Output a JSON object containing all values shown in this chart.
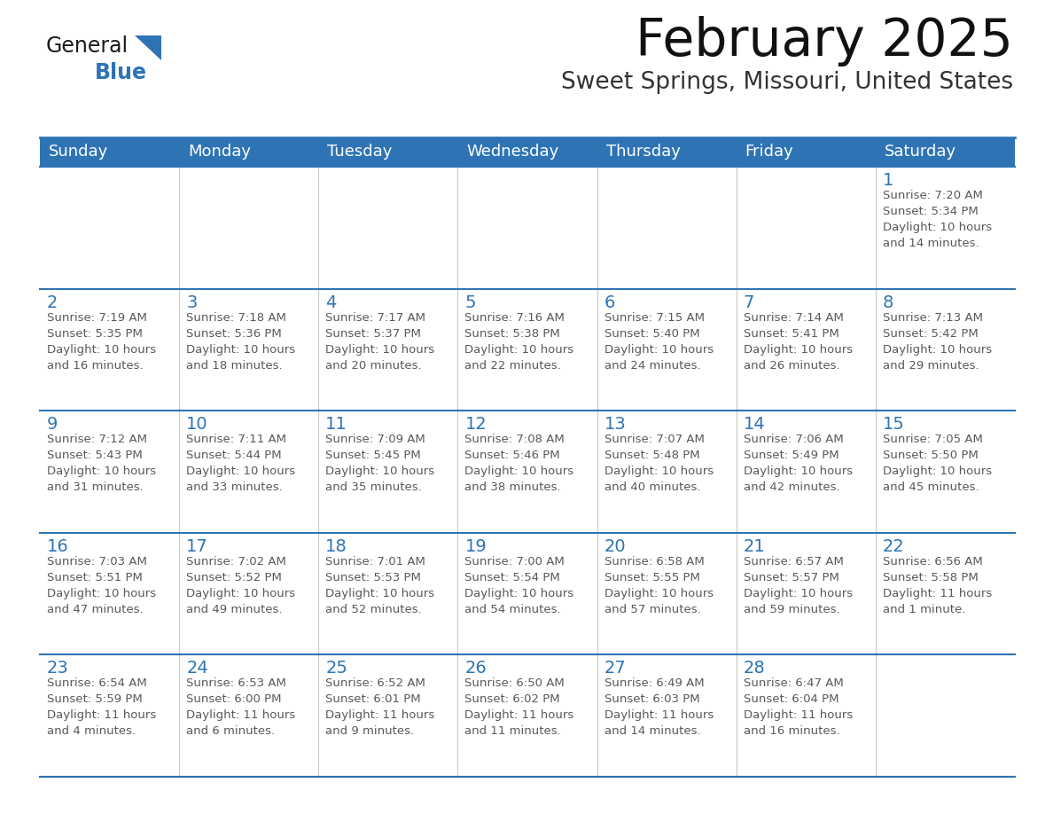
{
  "title": "February 2025",
  "subtitle": "Sweet Springs, Missouri, United States",
  "header_color": "#2e74b5",
  "header_text_color": "#ffffff",
  "cell_bg_color": "#ffffff",
  "border_color": "#2e74b5",
  "day_number_color": "#2e74b5",
  "info_text_color": "#595959",
  "days_of_week": [
    "Sunday",
    "Monday",
    "Tuesday",
    "Wednesday",
    "Thursday",
    "Friday",
    "Saturday"
  ],
  "weeks": [
    [
      {
        "day": "",
        "info": ""
      },
      {
        "day": "",
        "info": ""
      },
      {
        "day": "",
        "info": ""
      },
      {
        "day": "",
        "info": ""
      },
      {
        "day": "",
        "info": ""
      },
      {
        "day": "",
        "info": ""
      },
      {
        "day": "1",
        "info": "Sunrise: 7:20 AM\nSunset: 5:34 PM\nDaylight: 10 hours\nand 14 minutes."
      }
    ],
    [
      {
        "day": "2",
        "info": "Sunrise: 7:19 AM\nSunset: 5:35 PM\nDaylight: 10 hours\nand 16 minutes."
      },
      {
        "day": "3",
        "info": "Sunrise: 7:18 AM\nSunset: 5:36 PM\nDaylight: 10 hours\nand 18 minutes."
      },
      {
        "day": "4",
        "info": "Sunrise: 7:17 AM\nSunset: 5:37 PM\nDaylight: 10 hours\nand 20 minutes."
      },
      {
        "day": "5",
        "info": "Sunrise: 7:16 AM\nSunset: 5:38 PM\nDaylight: 10 hours\nand 22 minutes."
      },
      {
        "day": "6",
        "info": "Sunrise: 7:15 AM\nSunset: 5:40 PM\nDaylight: 10 hours\nand 24 minutes."
      },
      {
        "day": "7",
        "info": "Sunrise: 7:14 AM\nSunset: 5:41 PM\nDaylight: 10 hours\nand 26 minutes."
      },
      {
        "day": "8",
        "info": "Sunrise: 7:13 AM\nSunset: 5:42 PM\nDaylight: 10 hours\nand 29 minutes."
      }
    ],
    [
      {
        "day": "9",
        "info": "Sunrise: 7:12 AM\nSunset: 5:43 PM\nDaylight: 10 hours\nand 31 minutes."
      },
      {
        "day": "10",
        "info": "Sunrise: 7:11 AM\nSunset: 5:44 PM\nDaylight: 10 hours\nand 33 minutes."
      },
      {
        "day": "11",
        "info": "Sunrise: 7:09 AM\nSunset: 5:45 PM\nDaylight: 10 hours\nand 35 minutes."
      },
      {
        "day": "12",
        "info": "Sunrise: 7:08 AM\nSunset: 5:46 PM\nDaylight: 10 hours\nand 38 minutes."
      },
      {
        "day": "13",
        "info": "Sunrise: 7:07 AM\nSunset: 5:48 PM\nDaylight: 10 hours\nand 40 minutes."
      },
      {
        "day": "14",
        "info": "Sunrise: 7:06 AM\nSunset: 5:49 PM\nDaylight: 10 hours\nand 42 minutes."
      },
      {
        "day": "15",
        "info": "Sunrise: 7:05 AM\nSunset: 5:50 PM\nDaylight: 10 hours\nand 45 minutes."
      }
    ],
    [
      {
        "day": "16",
        "info": "Sunrise: 7:03 AM\nSunset: 5:51 PM\nDaylight: 10 hours\nand 47 minutes."
      },
      {
        "day": "17",
        "info": "Sunrise: 7:02 AM\nSunset: 5:52 PM\nDaylight: 10 hours\nand 49 minutes."
      },
      {
        "day": "18",
        "info": "Sunrise: 7:01 AM\nSunset: 5:53 PM\nDaylight: 10 hours\nand 52 minutes."
      },
      {
        "day": "19",
        "info": "Sunrise: 7:00 AM\nSunset: 5:54 PM\nDaylight: 10 hours\nand 54 minutes."
      },
      {
        "day": "20",
        "info": "Sunrise: 6:58 AM\nSunset: 5:55 PM\nDaylight: 10 hours\nand 57 minutes."
      },
      {
        "day": "21",
        "info": "Sunrise: 6:57 AM\nSunset: 5:57 PM\nDaylight: 10 hours\nand 59 minutes."
      },
      {
        "day": "22",
        "info": "Sunrise: 6:56 AM\nSunset: 5:58 PM\nDaylight: 11 hours\nand 1 minute."
      }
    ],
    [
      {
        "day": "23",
        "info": "Sunrise: 6:54 AM\nSunset: 5:59 PM\nDaylight: 11 hours\nand 4 minutes."
      },
      {
        "day": "24",
        "info": "Sunrise: 6:53 AM\nSunset: 6:00 PM\nDaylight: 11 hours\nand 6 minutes."
      },
      {
        "day": "25",
        "info": "Sunrise: 6:52 AM\nSunset: 6:01 PM\nDaylight: 11 hours\nand 9 minutes."
      },
      {
        "day": "26",
        "info": "Sunrise: 6:50 AM\nSunset: 6:02 PM\nDaylight: 11 hours\nand 11 minutes."
      },
      {
        "day": "27",
        "info": "Sunrise: 6:49 AM\nSunset: 6:03 PM\nDaylight: 11 hours\nand 14 minutes."
      },
      {
        "day": "28",
        "info": "Sunrise: 6:47 AM\nSunset: 6:04 PM\nDaylight: 11 hours\nand 16 minutes."
      },
      {
        "day": "",
        "info": ""
      }
    ]
  ],
  "logo_triangle_color": "#2e74b5",
  "fig_width": 11.88,
  "fig_height": 9.18,
  "dpi": 100
}
